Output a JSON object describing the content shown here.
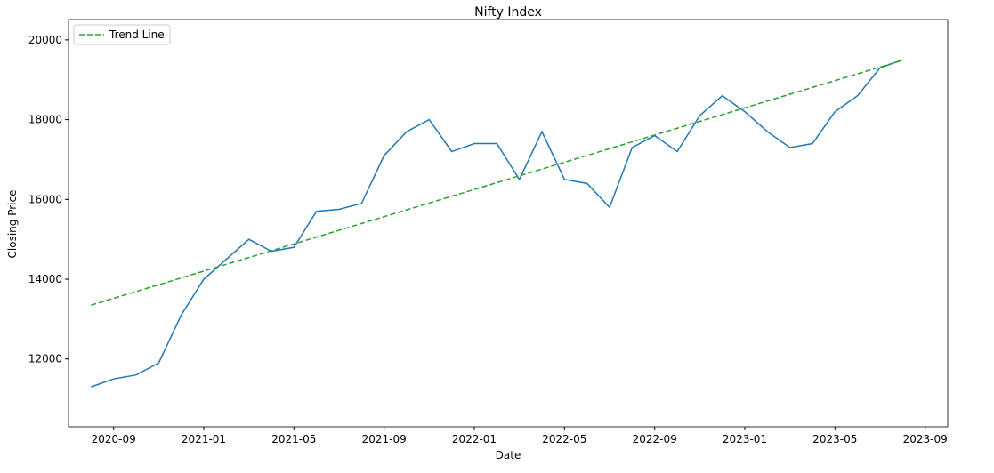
{
  "chart_data": {
    "type": "line",
    "title": "Nifty Index",
    "x_label": "Date",
    "y_label": "Closing Price",
    "series": [
      {
        "name": null,
        "color": "#1f77b4",
        "linestyle": "solid",
        "x": [
          "2020-08",
          "2020-09",
          "2020-10",
          "2020-11",
          "2020-12",
          "2021-01",
          "2021-02",
          "2021-03",
          "2021-04",
          "2021-05",
          "2021-06",
          "2021-07",
          "2021-08",
          "2021-09",
          "2021-10",
          "2021-11",
          "2021-12",
          "2022-01",
          "2022-02",
          "2022-03",
          "2022-04",
          "2022-05",
          "2022-06",
          "2022-07",
          "2022-08",
          "2022-09",
          "2022-10",
          "2022-11",
          "2022-12",
          "2023-01",
          "2023-02",
          "2023-03",
          "2023-04",
          "2023-05",
          "2023-06",
          "2023-07",
          "2023-08"
        ],
        "values": [
          11300,
          11500,
          11600,
          11900,
          13100,
          14000,
          14500,
          15000,
          14700,
          14800,
          15700,
          15750,
          15900,
          17100,
          17700,
          18000,
          17200,
          17400,
          17400,
          16500,
          17700,
          16500,
          16400,
          15800,
          17300,
          17600,
          17200,
          18100,
          18600,
          18200,
          17700,
          17300,
          17400,
          18200,
          18600,
          19300,
          19500
        ]
      },
      {
        "name": "Trend Line",
        "color": "#2ca02c",
        "linestyle": "dashed",
        "x": [
          "2020-08",
          "2023-08"
        ],
        "values": [
          13350,
          19490
        ]
      }
    ],
    "xlim": [
      "2020-07",
      "2023-10"
    ],
    "xticks": [
      "2020-09",
      "2021-01",
      "2021-05",
      "2021-09",
      "2022-01",
      "2022-05",
      "2022-09",
      "2023-01",
      "2023-05",
      "2023-09"
    ],
    "ylim": [
      10300,
      20510
    ],
    "yticks": [
      12000,
      14000,
      16000,
      18000,
      20000
    ],
    "grid": false,
    "legend": "upper-left"
  }
}
